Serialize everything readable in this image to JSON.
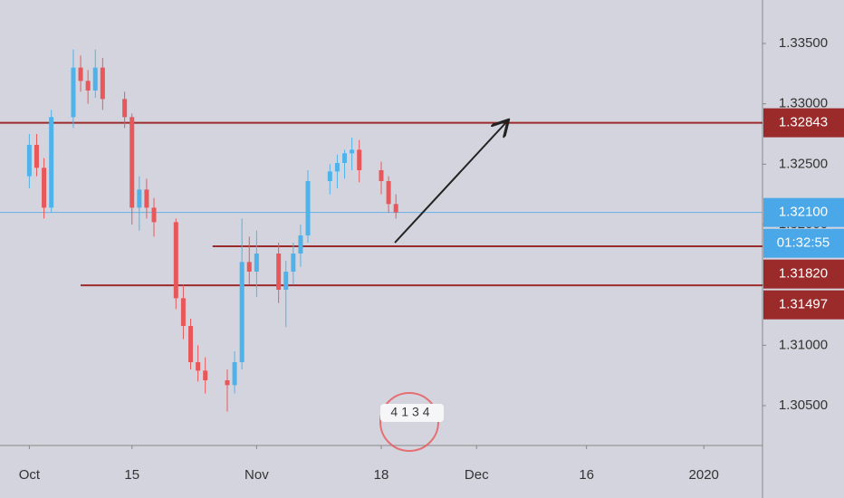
{
  "chart_data": {
    "type": "candlestick",
    "x": [
      "Oct 1",
      "Oct 2",
      "Oct 3",
      "Oct 4",
      "Oct 7",
      "Oct 8",
      "Oct 9",
      "Oct 10",
      "Oct 11",
      "Oct 14",
      "Oct 15",
      "Oct 16",
      "Oct 17",
      "Oct 18",
      "Oct 21",
      "Oct 22",
      "Oct 23",
      "Oct 24",
      "Oct 25",
      "Oct 28",
      "Oct 29",
      "Oct 30",
      "Oct 31",
      "Nov 1",
      "Nov 4",
      "Nov 5",
      "Nov 6",
      "Nov 7",
      "Nov 8",
      "Nov 11",
      "Nov 12",
      "Nov 13",
      "Nov 14",
      "Nov 15",
      "Nov 18",
      "Nov 19",
      "Nov 20"
    ],
    "open": [
      1.324,
      1.3266,
      1.3247,
      1.3214,
      1.3289,
      1.333,
      1.3319,
      1.3311,
      1.333,
      1.3304,
      1.3289,
      1.3214,
      1.3229,
      1.3214,
      1.3202,
      1.3139,
      1.3116,
      1.3086,
      1.3079,
      1.3071,
      1.3067,
      1.3086,
      1.3169,
      1.3161,
      1.3176,
      1.3146,
      1.3161,
      1.3176,
      1.3191,
      1.3236,
      1.3244,
      1.3251,
      1.3259,
      1.3262,
      1.3245,
      1.3236,
      1.3217
    ],
    "high": [
      1.3275,
      1.3275,
      1.3255,
      1.3295,
      1.3345,
      1.334,
      1.3328,
      1.3345,
      1.3338,
      1.331,
      1.3292,
      1.324,
      1.3238,
      1.3222,
      1.3205,
      1.315,
      1.3122,
      1.31,
      1.309,
      1.308,
      1.3095,
      1.3205,
      1.319,
      1.3195,
      1.3185,
      1.317,
      1.3185,
      1.32,
      1.3245,
      1.325,
      1.3258,
      1.3262,
      1.3272,
      1.327,
      1.3252,
      1.324,
      1.3225
    ],
    "low": [
      1.323,
      1.324,
      1.3205,
      1.321,
      1.328,
      1.331,
      1.33,
      1.3305,
      1.3295,
      1.328,
      1.32,
      1.3195,
      1.3205,
      1.319,
      1.313,
      1.3105,
      1.308,
      1.307,
      1.306,
      1.3045,
      1.306,
      1.308,
      1.315,
      1.314,
      1.3135,
      1.3115,
      1.315,
      1.3165,
      1.3185,
      1.3225,
      1.323,
      1.3238,
      1.3245,
      1.3235,
      1.3225,
      1.321,
      1.3205
    ],
    "close": [
      1.3266,
      1.3247,
      1.3214,
      1.3289,
      1.333,
      1.3319,
      1.3311,
      1.333,
      1.3304,
      1.3289,
      1.3214,
      1.3229,
      1.3214,
      1.3202,
      1.3139,
      1.3116,
      1.3086,
      1.3079,
      1.3071,
      1.3067,
      1.3086,
      1.3169,
      1.3161,
      1.3176,
      1.3146,
      1.3161,
      1.3176,
      1.3191,
      1.3236,
      1.3244,
      1.3251,
      1.3259,
      1.3262,
      1.3245,
      1.3236,
      1.3217,
      1.321
    ],
    "up_color": "#4fb3ea",
    "down_color": "#e8585a",
    "xlim": [
      "Sep 27",
      "Jan 9"
    ],
    "xticks": [
      {
        "value": "Oct 1",
        "label": "Oct"
      },
      {
        "value": "Oct 15",
        "label": "15"
      },
      {
        "value": "Nov 1",
        "label": "Nov"
      },
      {
        "value": "Nov 18",
        "label": "18"
      },
      {
        "value": "Dec 1",
        "label": "Dec"
      },
      {
        "value": "Dec 16",
        "label": "16"
      },
      {
        "value": "Jan 1",
        "label": "2020"
      }
    ],
    "ylim": [
      1.3017,
      1.3386
    ],
    "yticks": [
      {
        "value": 1.305,
        "label": "1.30500"
      },
      {
        "value": 1.31,
        "label": "1.31000"
      },
      {
        "value": 1.315,
        "label": "1.31500"
      },
      {
        "value": 1.32,
        "label": "1.32000"
      },
      {
        "value": 1.325,
        "label": "1.32500"
      },
      {
        "value": 1.33,
        "label": "1.33000"
      },
      {
        "value": 1.335,
        "label": "1.33500"
      }
    ],
    "levels": [
      {
        "value": 1.32843,
        "label": "1.32843",
        "color": "#9b2a2a",
        "from": "Sep 27"
      },
      {
        "value": 1.3182,
        "label": "1.31820",
        "color": "#9b2a2a",
        "from": "Oct 26"
      },
      {
        "value": 1.31497,
        "label": "1.31497",
        "color": "#9b2a2a",
        "from": "Oct 8"
      }
    ],
    "current_price": {
      "value": 1.321,
      "label": "1.32100",
      "color": "#4aa8e8"
    },
    "countdown": "01:32:55",
    "watermark": "4134"
  }
}
